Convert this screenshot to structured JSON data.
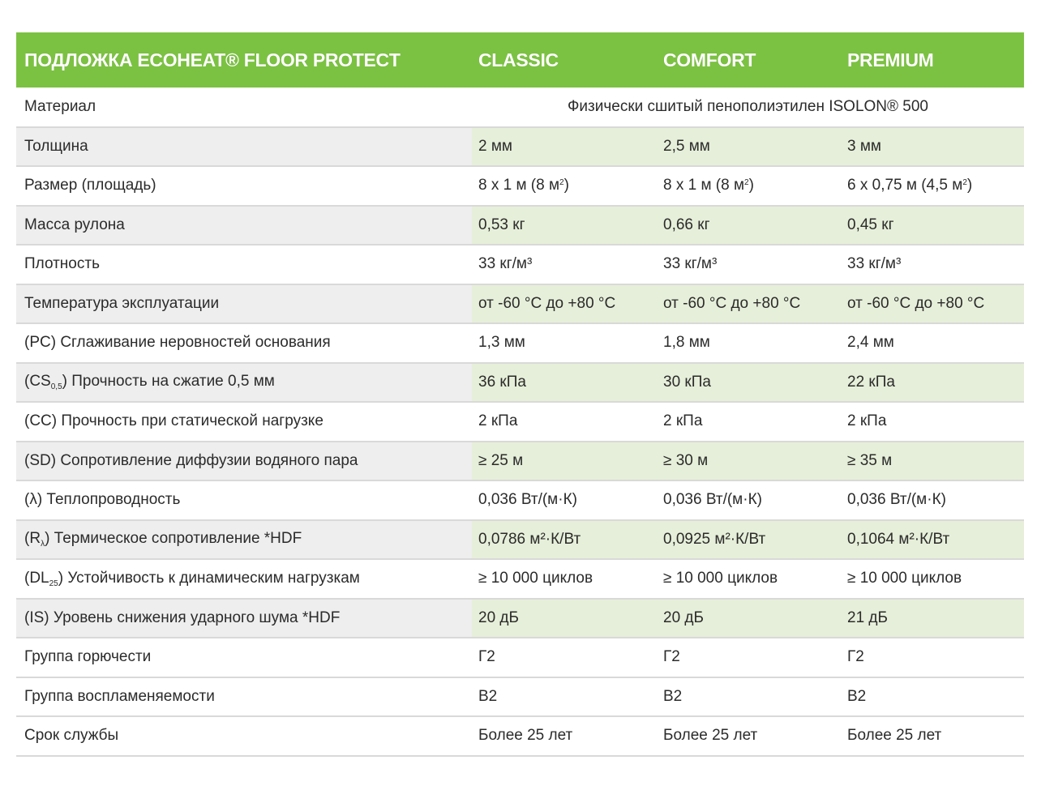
{
  "header": {
    "product": "ПОДЛОЖКА ECOHEAT® FLOOR PROTECT",
    "classic": "CLASSIC",
    "comfort": "COMFORT",
    "premium": "PREMIUM"
  },
  "rows": {
    "material": {
      "label": "Материал",
      "value": "Физически сшитый пенополиэтилен ISOLON® 500"
    },
    "thickness": {
      "label": "Толщина",
      "classic": "2 мм",
      "comfort": "2,5 мм",
      "premium": "3 мм"
    },
    "size": {
      "label": "Размер (площадь)",
      "classic": "8 х 1 м (8 м",
      "comfort": "8 х 1 м (8 м",
      "premium": "6 х 0,75 м (4,5 м",
      "sup": "2",
      "close": ")"
    },
    "mass": {
      "label": "Масса рулона",
      "classic": "0,53 кг",
      "comfort": "0,66 кг",
      "premium": "0,45 кг"
    },
    "density": {
      "label": "Плотность",
      "classic": "33 кг/м³",
      "comfort": "33 кг/м³",
      "premium": "33 кг/м³"
    },
    "temp": {
      "label": "Температура эксплуатации",
      "classic": "от -60 °С до +80 °С",
      "comfort": "от -60 °С до +80 °С",
      "premium": "от -60 °С до +80 °С"
    },
    "pc": {
      "label": "(PC) Сглаживание неровностей основания",
      "classic": "1,3 мм",
      "comfort": "1,8 мм",
      "premium": "2,4 мм"
    },
    "cs": {
      "label_pre": "(CS",
      "label_sub": "0,5",
      "label_post": ") Прочность на сжатие 0,5 мм",
      "classic": "36 кПа",
      "comfort": "30 кПа",
      "premium": "22 кПа"
    },
    "cc": {
      "label": "(CC) Прочность при статической нагрузке",
      "classic": "2 кПа",
      "comfort": "2 кПа",
      "premium": "2 кПа"
    },
    "sd": {
      "label": "(SD) Сопротивление диффузии водяного пара",
      "classic": "≥ 25 м",
      "comfort": "≥ 30 м",
      "premium": "≥ 35 м"
    },
    "lambda": {
      "label": "(λ) Теплопроводность",
      "classic": "0,036 Вт/(м·К)",
      "comfort": "0,036 Вт/(м·К)",
      "premium": "0,036 Вт/(м·К)"
    },
    "r": {
      "label_pre": "(R",
      "label_sub": "λ",
      "label_post": ") Термическое сопротивление *HDF",
      "classic": "0,0786 м²·К/Вт",
      "comfort": "0,0925 м²·К/Вт",
      "premium": "0,1064 м²·К/Вт"
    },
    "dl": {
      "label_pre": "(DL",
      "label_sub": "25",
      "label_post": ") Устойчивость к динамическим нагрузкам",
      "classic": "≥ 10 000 циклов",
      "comfort": "≥ 10 000 циклов",
      "premium": "≥ 10 000 циклов"
    },
    "is": {
      "label": "(IS) Уровень снижения ударного шума *HDF",
      "classic": "20 дБ",
      "comfort": "20 дБ",
      "premium": "21 дБ"
    },
    "combustibility": {
      "label": "Группа горючести",
      "classic": "Г2",
      "comfort": "Г2",
      "premium": "Г2"
    },
    "flammability": {
      "label": "Группа воспламеняемости",
      "classic": "В2",
      "comfort": "В2",
      "premium": "В2"
    },
    "lifetime": {
      "label": "Срок службы",
      "classic": "Более 25 лет",
      "comfort": "Более 25 лет",
      "premium": "Более 25 лет"
    }
  },
  "colors": {
    "header_green": "#7cc242",
    "shaded_label": "#eeeeee",
    "shaded_value": "#e6efd9",
    "divider": "#d9d9d9"
  }
}
